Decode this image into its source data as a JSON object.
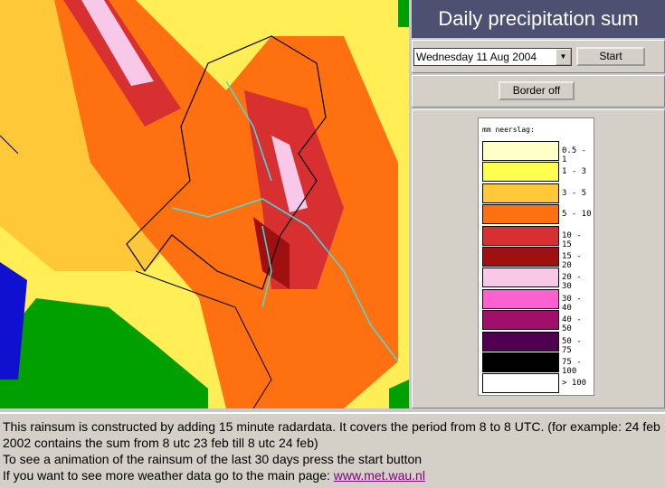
{
  "header": {
    "title": "Daily precipitation sum"
  },
  "controls": {
    "date": "Wednesday 11 Aug 2004",
    "start": "Start",
    "border": "Border off"
  },
  "legend": {
    "title": "mm neerslag:",
    "items": [
      {
        "label": "0.5 - 1",
        "color": "#ffffc8"
      },
      {
        "label": "1 - 3",
        "color": "#ffff50"
      },
      {
        "label": "3 - 5",
        "color": "#ffc838"
      },
      {
        "label": "5 - 10",
        "color": "#ff7010"
      },
      {
        "label": "10 - 15",
        "color": "#d83030"
      },
      {
        "label": "15 - 20",
        "color": "#a01010"
      },
      {
        "label": "20 - 30",
        "color": "#f8c8e8"
      },
      {
        "label": "30 - 40",
        "color": "#ff60d0"
      },
      {
        "label": "40 - 50",
        "color": "#a0106a"
      },
      {
        "label": "50 - 75",
        "color": "#500050"
      },
      {
        "label": "75 - 100",
        "color": "#000000"
      },
      {
        "label": "> 100",
        "color": "#ffffff"
      }
    ]
  },
  "footer": {
    "lines": [
      "This rainsum is constructed by adding 15 minute radardata. It covers the period from 8 to 8 UTC. (for example: 24 feb 2002 contains the sum from 8 utc 23 feb till 8 utc 24 feb)",
      "To see a animation of the rainsum of the last 30 days press the start button",
      "If you want to see more weather data go to the main page: "
    ],
    "link": "www.met.wau.nl"
  }
}
